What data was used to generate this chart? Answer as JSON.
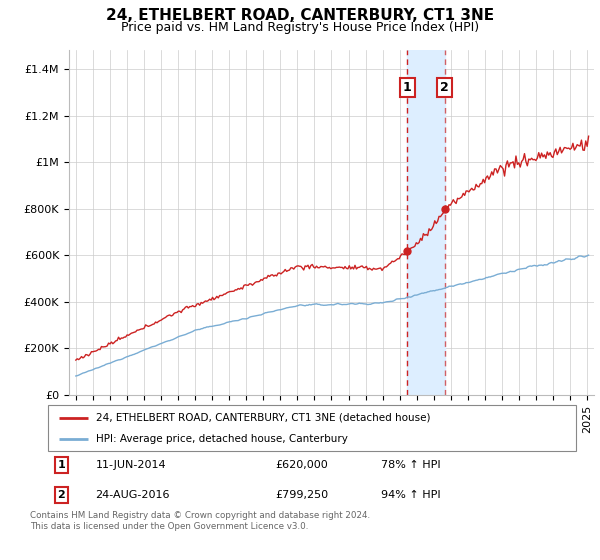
{
  "title": "24, ETHELBERT ROAD, CANTERBURY, CT1 3NE",
  "subtitle": "Price paid vs. HM Land Registry's House Price Index (HPI)",
  "ylabel_ticks": [
    "£0",
    "£200K",
    "£400K",
    "£600K",
    "£800K",
    "£1M",
    "£1.2M",
    "£1.4M"
  ],
  "ytick_values": [
    0,
    200000,
    400000,
    600000,
    800000,
    1000000,
    1200000,
    1400000
  ],
  "ylim": [
    0,
    1480000
  ],
  "xlim_start": 1994.6,
  "xlim_end": 2025.4,
  "sale1_date": 2014.44,
  "sale1_price": 620000,
  "sale2_date": 2016.65,
  "sale2_price": 799250,
  "red_color": "#cc2222",
  "blue_color": "#7aadd4",
  "shaded_color": "#ddeeff",
  "dashed_color": "#cc2222",
  "legend_entry1": "24, ETHELBERT ROAD, CANTERBURY, CT1 3NE (detached house)",
  "legend_entry2": "HPI: Average price, detached house, Canterbury",
  "footnote1": "Contains HM Land Registry data © Crown copyright and database right 2024.",
  "footnote2": "This data is licensed under the Open Government Licence v3.0.",
  "title_fontsize": 11,
  "subtitle_fontsize": 9,
  "axis_fontsize": 8
}
